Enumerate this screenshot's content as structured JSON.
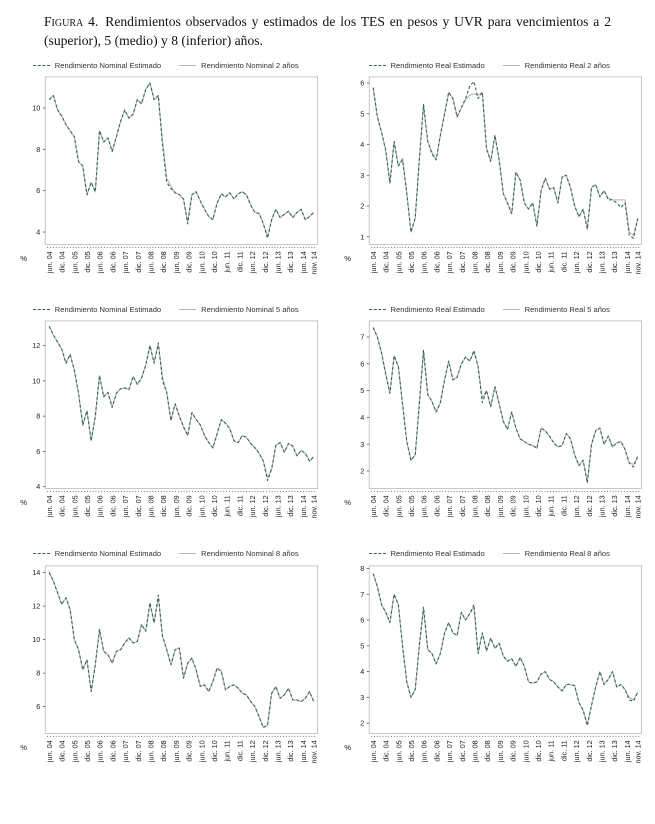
{
  "figure": {
    "title_prefix": "Figura 4.",
    "title_rest": "Rendimientos observados y estimados de los TES en pesos y UVR para vencimientos a 2 (superior), 5 (medio) y 8 (inferior) años."
  },
  "colors": {
    "estimated_line": "#2f6b51",
    "observed_line": "#b4b4b4",
    "plot_border": "#b8b8b8",
    "axis_text": "#222222"
  },
  "axis": {
    "percent_label": "%",
    "x_total_months": 125,
    "x_tick_months": [
      0,
      6,
      12,
      18,
      24,
      30,
      36,
      42,
      48,
      54,
      60,
      66,
      72,
      78,
      84,
      90,
      96,
      102,
      108,
      114,
      120,
      125
    ],
    "x_tick_labels": [
      "jun. 04",
      "dic. 04",
      "jun. 05",
      "dic. 05",
      "jun. 06",
      "dic. 06",
      "jun. 07",
      "dic. 07",
      "jun. 08",
      "dic. 08",
      "jun. 09",
      "dic. 09",
      "jun. 10",
      "dic. 10",
      "jun. 11",
      "dic. 11",
      "jun. 12",
      "dic. 12",
      "jun. 13",
      "dic. 13",
      "jun. 14",
      "nov. 14"
    ]
  },
  "chart_data": [
    {
      "id": "nominal-2y",
      "type": "line",
      "position": "top-left",
      "legend": [
        "Rendimiento Nominal Estimado",
        "Rendimiento Nominal 2 años"
      ],
      "ylim": [
        3.4,
        11.5
      ],
      "yticks": [
        4,
        6,
        8,
        10
      ],
      "series": [
        {
          "name": "Rendimiento Nominal Estimado",
          "style": "dashed-green",
          "values": [
            10.4,
            10.6,
            9.9,
            9.6,
            9.2,
            8.9,
            8.6,
            7.4,
            7.2,
            5.8,
            6.4,
            5.95,
            8.9,
            8.35,
            8.55,
            7.9,
            8.6,
            9.35,
            9.9,
            9.5,
            9.7,
            10.4,
            10.2,
            10.9,
            11.2,
            10.4,
            10.6,
            8.2,
            6.4,
            6.1,
            5.9,
            5.8,
            5.6,
            4.4,
            5.8,
            5.95,
            5.5,
            5.1,
            4.75,
            4.6,
            5.4,
            5.85,
            5.7,
            5.9,
            5.6,
            5.85,
            5.95,
            5.8,
            5.3,
            4.95,
            4.9,
            4.4,
            3.7,
            4.6,
            5.1,
            4.7,
            4.85,
            5.0,
            4.7,
            4.95,
            5.1,
            4.6,
            4.75,
            4.95
          ]
        },
        {
          "name": "Rendimiento Nominal 2 años",
          "style": "solid-gray",
          "values": [
            10.4,
            10.6,
            9.9,
            9.6,
            9.2,
            8.9,
            8.6,
            7.4,
            7.2,
            5.8,
            6.4,
            5.95,
            8.9,
            8.35,
            8.55,
            7.9,
            8.6,
            9.35,
            9.9,
            9.5,
            9.7,
            10.4,
            10.2,
            10.9,
            11.2,
            10.4,
            10.55,
            8.4,
            6.6,
            6.2,
            5.9,
            5.8,
            5.6,
            4.5,
            5.8,
            5.95,
            5.5,
            5.1,
            4.75,
            4.6,
            5.4,
            5.85,
            5.7,
            5.9,
            5.6,
            5.85,
            5.95,
            5.8,
            5.3,
            4.95,
            4.9,
            4.4,
            3.8,
            4.6,
            5.1,
            4.7,
            4.85,
            5.0,
            4.7,
            4.95,
            5.1,
            4.6,
            4.75,
            4.95
          ]
        }
      ]
    },
    {
      "id": "real-2y",
      "type": "line",
      "position": "top-right",
      "legend": [
        "Rendimiento Real Estimado",
        "Rendimiento Real 2 años"
      ],
      "ylim": [
        0.75,
        6.2
      ],
      "yticks": [
        1,
        2,
        3,
        4,
        5,
        6
      ],
      "series": [
        {
          "name": "Rendimiento Real Estimado",
          "style": "dashed-green",
          "values": [
            5.85,
            4.9,
            4.4,
            3.8,
            2.75,
            4.1,
            3.3,
            3.5,
            2.4,
            1.15,
            1.6,
            3.5,
            5.3,
            4.1,
            3.7,
            3.5,
            4.3,
            5.0,
            5.7,
            5.5,
            4.9,
            5.2,
            5.5,
            5.9,
            6.05,
            5.5,
            5.7,
            3.85,
            3.45,
            4.3,
            3.5,
            2.4,
            2.1,
            1.75,
            3.1,
            2.85,
            2.1,
            1.9,
            2.1,
            1.35,
            2.5,
            2.9,
            2.55,
            2.6,
            2.1,
            2.95,
            3.0,
            2.6,
            2.0,
            1.65,
            1.9,
            1.25,
            2.6,
            2.7,
            2.3,
            2.5,
            2.2,
            2.2,
            2.1,
            1.95,
            2.1,
            1.05,
            0.95,
            1.6
          ]
        },
        {
          "name": "Rendimiento Real 2 años",
          "style": "solid-gray",
          "values": [
            5.85,
            4.9,
            4.4,
            3.8,
            2.75,
            4.1,
            3.3,
            3.55,
            2.45,
            1.15,
            1.6,
            3.5,
            5.3,
            4.1,
            3.75,
            3.5,
            4.3,
            5.0,
            5.7,
            5.5,
            4.9,
            5.2,
            5.45,
            5.6,
            5.65,
            5.6,
            5.7,
            3.9,
            3.45,
            4.3,
            3.5,
            2.4,
            2.1,
            1.75,
            3.1,
            2.85,
            2.1,
            1.9,
            2.1,
            1.35,
            2.5,
            2.9,
            2.55,
            2.6,
            2.1,
            2.95,
            3.0,
            2.6,
            2.0,
            1.65,
            1.9,
            1.25,
            2.6,
            2.7,
            2.3,
            2.5,
            2.25,
            2.2,
            2.2,
            2.2,
            2.2,
            1.15,
            1.05,
            1.55
          ]
        }
      ]
    },
    {
      "id": "nominal-5y",
      "type": "line",
      "position": "middle-left",
      "legend": [
        "Rendimiento Nominal Estimado",
        "Rendimiento Nominal 5 años"
      ],
      "ylim": [
        3.9,
        13.4
      ],
      "yticks": [
        4,
        6,
        8,
        10,
        12
      ],
      "series": [
        {
          "name": "Rendimiento Nominal Estimado",
          "style": "dashed-green",
          "values": [
            13.1,
            12.6,
            12.2,
            11.8,
            11.0,
            11.5,
            10.6,
            9.3,
            7.5,
            8.3,
            6.6,
            8.0,
            10.3,
            9.1,
            9.35,
            8.5,
            9.3,
            9.55,
            9.6,
            9.5,
            10.25,
            9.8,
            10.15,
            10.9,
            12.0,
            11.0,
            12.15,
            10.0,
            9.35,
            7.75,
            8.7,
            8.0,
            7.4,
            6.9,
            8.2,
            7.8,
            7.5,
            6.9,
            6.5,
            6.2,
            7.0,
            7.8,
            7.6,
            7.3,
            6.6,
            6.5,
            6.9,
            6.8,
            6.45,
            6.2,
            5.9,
            5.45,
            4.35,
            5.0,
            6.35,
            6.5,
            5.95,
            6.45,
            6.3,
            5.75,
            6.05,
            5.9,
            5.45,
            5.7
          ]
        },
        {
          "name": "Rendimiento Nominal 5 años",
          "style": "solid-gray",
          "values": [
            13.1,
            12.6,
            12.2,
            11.8,
            11.0,
            11.5,
            10.6,
            9.3,
            7.5,
            8.3,
            6.6,
            8.0,
            10.3,
            9.1,
            9.35,
            8.5,
            9.3,
            9.55,
            9.6,
            9.5,
            10.25,
            9.8,
            10.15,
            10.9,
            12.0,
            11.05,
            12.1,
            10.2,
            9.35,
            7.75,
            8.7,
            8.0,
            7.4,
            6.9,
            8.2,
            7.8,
            7.5,
            6.9,
            6.5,
            6.2,
            7.0,
            7.8,
            7.6,
            7.3,
            6.6,
            6.5,
            6.9,
            6.8,
            6.45,
            6.2,
            5.9,
            5.45,
            4.5,
            5.0,
            6.35,
            6.5,
            5.95,
            6.45,
            6.3,
            5.75,
            6.05,
            5.9,
            5.45,
            5.7
          ]
        }
      ]
    },
    {
      "id": "real-5y",
      "type": "line",
      "position": "middle-right",
      "legend": [
        "Rendimiento Real Estimado",
        "Rendimiento Real 5 años"
      ],
      "ylim": [
        1.35,
        7.6
      ],
      "yticks": [
        2,
        3,
        4,
        5,
        6,
        7
      ],
      "series": [
        {
          "name": "Rendimiento Real Estimado",
          "style": "dashed-green",
          "values": [
            7.35,
            7.0,
            6.4,
            5.6,
            4.9,
            6.3,
            5.9,
            4.5,
            3.1,
            2.4,
            2.6,
            4.5,
            6.5,
            4.85,
            4.6,
            4.2,
            4.55,
            5.4,
            6.1,
            5.4,
            5.5,
            6.0,
            6.25,
            6.1,
            6.5,
            5.9,
            4.55,
            5.0,
            4.4,
            5.15,
            4.5,
            3.85,
            3.55,
            4.2,
            3.6,
            3.2,
            3.1,
            3.0,
            2.95,
            2.85,
            3.6,
            3.5,
            3.3,
            3.05,
            2.9,
            2.95,
            3.4,
            3.2,
            2.6,
            2.2,
            2.4,
            1.55,
            3.0,
            3.5,
            3.6,
            3.0,
            3.3,
            2.9,
            3.05,
            3.1,
            2.8,
            2.3,
            2.15,
            2.55
          ]
        },
        {
          "name": "Rendimiento Real 5 años",
          "style": "solid-gray",
          "values": [
            7.35,
            7.0,
            6.4,
            5.6,
            4.9,
            6.3,
            5.9,
            4.5,
            3.1,
            2.4,
            2.6,
            4.5,
            6.5,
            4.85,
            4.6,
            4.2,
            4.55,
            5.4,
            6.1,
            5.4,
            5.5,
            6.0,
            6.25,
            6.1,
            6.45,
            5.9,
            4.7,
            5.0,
            4.4,
            5.15,
            4.5,
            3.85,
            3.55,
            4.2,
            3.6,
            3.2,
            3.1,
            3.0,
            2.95,
            2.85,
            3.6,
            3.5,
            3.3,
            3.05,
            2.9,
            2.95,
            3.4,
            3.2,
            2.6,
            2.2,
            2.4,
            1.6,
            3.0,
            3.5,
            3.6,
            3.0,
            3.3,
            2.9,
            3.05,
            3.1,
            2.8,
            2.3,
            2.25,
            2.5
          ]
        }
      ]
    },
    {
      "id": "nominal-8y",
      "type": "line",
      "position": "bottom-left",
      "legend": [
        "Rendimiento Nominal Estimado",
        "Rendimiento Nominal 8 años"
      ],
      "ylim": [
        4.4,
        14.4
      ],
      "yticks": [
        6,
        8,
        10,
        12,
        14
      ],
      "series": [
        {
          "name": "Rendimiento Nominal Estimado",
          "style": "dashed-green",
          "values": [
            14.0,
            13.5,
            12.8,
            12.1,
            12.5,
            11.8,
            10.0,
            9.4,
            8.2,
            8.8,
            6.9,
            8.5,
            10.6,
            9.3,
            9.1,
            8.6,
            9.3,
            9.4,
            9.8,
            10.1,
            9.8,
            9.9,
            10.9,
            10.5,
            12.2,
            11.0,
            12.65,
            10.2,
            9.4,
            8.5,
            9.4,
            9.5,
            7.7,
            8.6,
            8.9,
            8.2,
            7.2,
            7.3,
            6.9,
            7.5,
            8.3,
            8.1,
            7.0,
            7.2,
            7.3,
            7.1,
            6.8,
            6.7,
            6.3,
            6.0,
            5.4,
            4.75,
            4.9,
            6.8,
            7.2,
            6.5,
            6.7,
            7.1,
            6.4,
            6.4,
            6.3,
            6.5,
            6.9,
            6.3
          ]
        },
        {
          "name": "Rendimiento Nominal 8 años",
          "style": "solid-gray",
          "values": [
            14.05,
            13.5,
            12.8,
            12.1,
            12.5,
            11.8,
            10.0,
            9.4,
            8.2,
            8.8,
            6.9,
            8.5,
            10.6,
            9.3,
            9.1,
            8.6,
            9.3,
            9.4,
            9.8,
            10.1,
            9.8,
            9.9,
            10.9,
            10.5,
            12.15,
            11.0,
            12.5,
            10.2,
            9.4,
            8.5,
            9.4,
            9.5,
            7.7,
            8.6,
            8.9,
            8.2,
            7.2,
            7.3,
            6.9,
            7.5,
            8.3,
            8.1,
            7.0,
            7.2,
            7.3,
            7.1,
            6.8,
            6.7,
            6.3,
            6.0,
            5.4,
            4.75,
            4.9,
            6.8,
            7.2,
            6.5,
            6.7,
            7.1,
            6.4,
            6.4,
            6.3,
            6.5,
            6.9,
            6.3
          ]
        }
      ]
    },
    {
      "id": "real-8y",
      "type": "line",
      "position": "bottom-right",
      "legend": [
        "Rendimiento Real Estimado",
        "Rendimiento Real 8 años"
      ],
      "ylim": [
        1.6,
        8.1
      ],
      "yticks": [
        2,
        3,
        4,
        5,
        6,
        7,
        8
      ],
      "series": [
        {
          "name": "Rendimiento Real Estimado",
          "style": "dashed-green",
          "values": [
            7.8,
            7.3,
            6.6,
            6.3,
            5.9,
            7.0,
            6.6,
            5.0,
            3.6,
            3.0,
            3.3,
            5.0,
            6.5,
            4.85,
            4.7,
            4.3,
            4.7,
            5.5,
            5.9,
            5.5,
            5.4,
            6.3,
            6.0,
            6.25,
            6.6,
            4.7,
            5.5,
            4.8,
            5.3,
            4.9,
            5.1,
            4.6,
            4.4,
            4.5,
            4.2,
            4.55,
            4.2,
            3.6,
            3.55,
            3.6,
            3.9,
            4.0,
            3.7,
            3.6,
            3.4,
            3.25,
            3.5,
            3.5,
            3.45,
            2.8,
            2.5,
            1.9,
            2.7,
            3.4,
            4.0,
            3.5,
            3.7,
            4.0,
            3.4,
            3.5,
            3.3,
            2.9,
            2.85,
            3.2
          ]
        },
        {
          "name": "Rendimiento Real 8 años",
          "style": "solid-gray",
          "values": [
            7.8,
            7.3,
            6.6,
            6.3,
            5.9,
            7.0,
            6.6,
            5.0,
            3.6,
            3.0,
            3.3,
            5.0,
            6.45,
            4.85,
            4.7,
            4.3,
            4.7,
            5.5,
            5.9,
            5.5,
            5.4,
            6.3,
            6.0,
            6.25,
            6.5,
            4.7,
            5.5,
            4.8,
            5.3,
            4.9,
            5.1,
            4.6,
            4.4,
            4.5,
            4.2,
            4.55,
            4.2,
            3.6,
            3.55,
            3.6,
            3.9,
            4.0,
            3.7,
            3.6,
            3.4,
            3.25,
            3.5,
            3.5,
            3.45,
            2.8,
            2.5,
            1.95,
            2.7,
            3.4,
            4.0,
            3.5,
            3.7,
            4.0,
            3.4,
            3.5,
            3.3,
            3.0,
            2.9,
            3.2
          ]
        }
      ]
    }
  ]
}
